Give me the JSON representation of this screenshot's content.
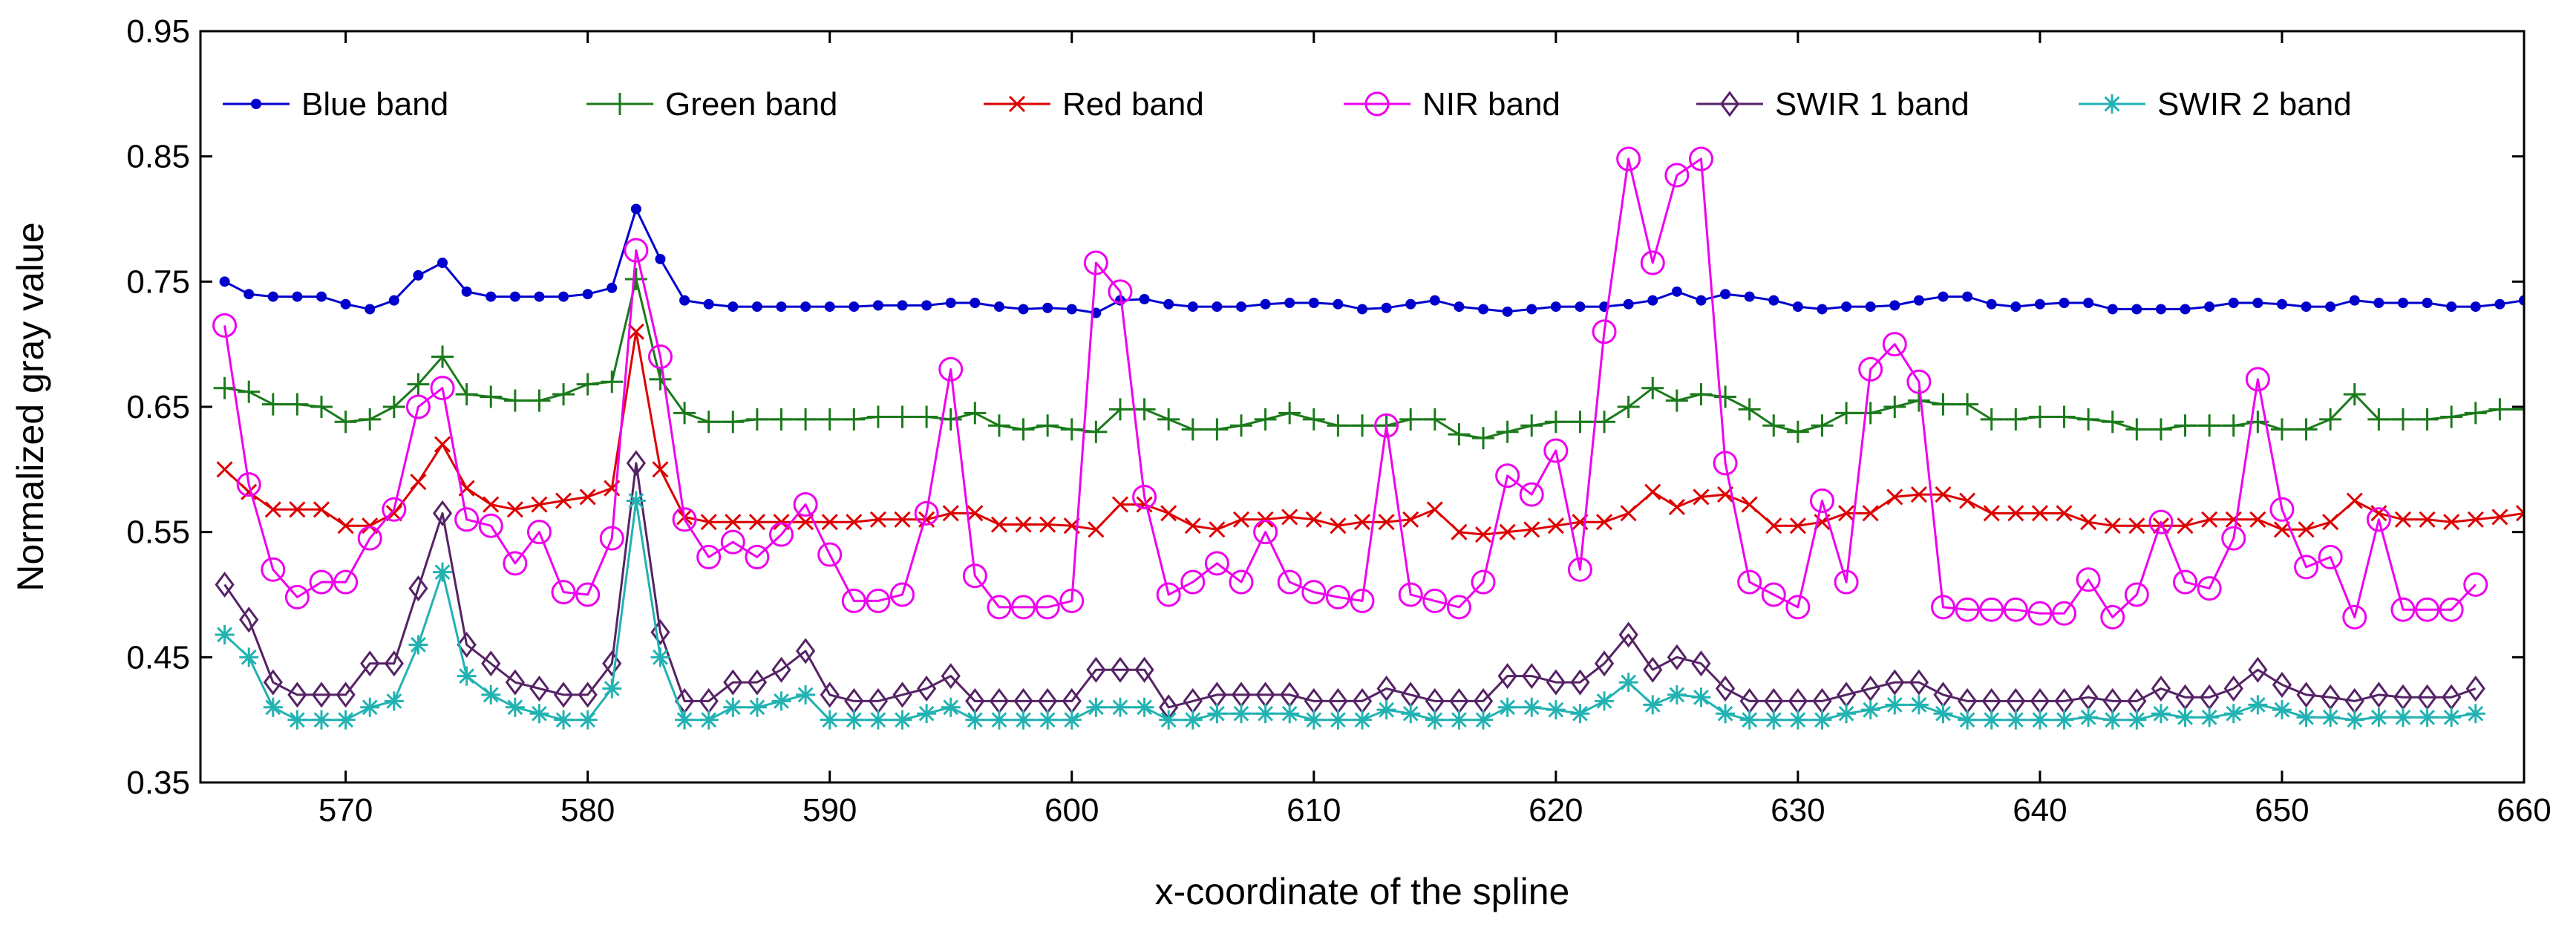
{
  "chart_data": {
    "type": "line",
    "title": "",
    "xlabel": "x-coordinate of the spline",
    "ylabel": "Normalized gray value",
    "xlim": [
      564,
      660
    ],
    "ylim": [
      0.35,
      0.95
    ],
    "x_ticks": [
      570,
      580,
      590,
      600,
      610,
      620,
      630,
      640,
      650,
      660
    ],
    "y_ticks": [
      0.35,
      0.45,
      0.55,
      0.65,
      0.75,
      0.85,
      0.95
    ],
    "x_tick_labels": [
      "570",
      "580",
      "590",
      "600",
      "610",
      "620",
      "630",
      "640",
      "650",
      "660"
    ],
    "y_tick_labels": [
      "0.35",
      "0.45",
      "0.55",
      "0.65",
      "0.75",
      "0.85",
      "0.95"
    ],
    "grid": false,
    "legend_position": "top",
    "x_start": 565,
    "x_step": 1,
    "series": [
      {
        "name": "Blue band",
        "color": "#0000cc",
        "marker": "dot",
        "values": [
          0.75,
          0.74,
          0.738,
          0.738,
          0.738,
          0.732,
          0.728,
          0.735,
          0.755,
          0.765,
          0.742,
          0.738,
          0.738,
          0.738,
          0.738,
          0.74,
          0.745,
          0.808,
          0.768,
          0.735,
          0.732,
          0.73,
          0.73,
          0.73,
          0.73,
          0.73,
          0.73,
          0.731,
          0.731,
          0.731,
          0.733,
          0.733,
          0.73,
          0.728,
          0.729,
          0.728,
          0.725,
          0.735,
          0.736,
          0.732,
          0.73,
          0.73,
          0.73,
          0.732,
          0.733,
          0.733,
          0.732,
          0.728,
          0.729,
          0.732,
          0.735,
          0.73,
          0.728,
          0.726,
          0.728,
          0.73,
          0.73,
          0.73,
          0.732,
          0.735,
          0.742,
          0.735,
          0.74,
          0.738,
          0.735,
          0.73,
          0.728,
          0.73,
          0.73,
          0.731,
          0.735,
          0.738,
          0.738,
          0.732,
          0.73,
          0.732,
          0.733,
          0.733,
          0.728,
          0.728,
          0.728,
          0.728,
          0.73,
          0.733,
          0.733,
          0.732,
          0.73,
          0.73,
          0.735,
          0.733,
          0.733,
          0.733,
          0.73,
          0.73,
          0.732,
          0.735
        ]
      },
      {
        "name": "Green band",
        "color": "#1a7a1a",
        "marker": "plus",
        "values": [
          0.665,
          0.662,
          0.652,
          0.652,
          0.65,
          0.638,
          0.64,
          0.65,
          0.668,
          0.69,
          0.66,
          0.658,
          0.655,
          0.655,
          0.66,
          0.668,
          0.67,
          0.752,
          0.672,
          0.645,
          0.638,
          0.638,
          0.64,
          0.64,
          0.64,
          0.64,
          0.64,
          0.642,
          0.642,
          0.642,
          0.64,
          0.645,
          0.635,
          0.632,
          0.635,
          0.632,
          0.63,
          0.648,
          0.648,
          0.64,
          0.632,
          0.632,
          0.635,
          0.64,
          0.645,
          0.64,
          0.635,
          0.635,
          0.635,
          0.64,
          0.64,
          0.628,
          0.625,
          0.63,
          0.635,
          0.638,
          0.638,
          0.638,
          0.65,
          0.665,
          0.655,
          0.66,
          0.658,
          0.648,
          0.635,
          0.63,
          0.635,
          0.645,
          0.645,
          0.65,
          0.655,
          0.652,
          0.652,
          0.64,
          0.64,
          0.642,
          0.642,
          0.64,
          0.638,
          0.632,
          0.632,
          0.635,
          0.635,
          0.635,
          0.638,
          0.632,
          0.632,
          0.64,
          0.66,
          0.64,
          0.64,
          0.64,
          0.642,
          0.645,
          0.648,
          0.648
        ]
      },
      {
        "name": "Red band",
        "color": "#dd0000",
        "marker": "x",
        "values": [
          0.6,
          0.582,
          0.568,
          0.568,
          0.568,
          0.555,
          0.555,
          0.565,
          0.59,
          0.62,
          0.585,
          0.572,
          0.568,
          0.572,
          0.575,
          0.578,
          0.585,
          0.71,
          0.6,
          0.562,
          0.558,
          0.558,
          0.558,
          0.558,
          0.558,
          0.558,
          0.558,
          0.56,
          0.56,
          0.56,
          0.565,
          0.565,
          0.556,
          0.556,
          0.556,
          0.555,
          0.552,
          0.572,
          0.572,
          0.565,
          0.555,
          0.552,
          0.56,
          0.56,
          0.562,
          0.56,
          0.555,
          0.558,
          0.558,
          0.56,
          0.568,
          0.55,
          0.548,
          0.55,
          0.552,
          0.555,
          0.558,
          0.558,
          0.565,
          0.582,
          0.57,
          0.578,
          0.58,
          0.572,
          0.555,
          0.555,
          0.558,
          0.565,
          0.565,
          0.578,
          0.58,
          0.58,
          0.575,
          0.565,
          0.565,
          0.565,
          0.565,
          0.558,
          0.555,
          0.555,
          0.555,
          0.555,
          0.56,
          0.56,
          0.56,
          0.552,
          0.552,
          0.558,
          0.575,
          0.565,
          0.56,
          0.56,
          0.558,
          0.56,
          0.562,
          0.565
        ]
      },
      {
        "name": "NIR band",
        "color": "#ee00ee",
        "marker": "circle",
        "values": [
          0.715,
          0.588,
          0.52,
          0.498,
          0.51,
          0.51,
          0.545,
          0.568,
          0.65,
          0.665,
          0.56,
          0.555,
          0.525,
          0.55,
          0.502,
          0.5,
          0.545,
          0.775,
          0.69,
          0.56,
          0.53,
          0.542,
          0.53,
          0.548,
          0.572,
          0.532,
          0.495,
          0.495,
          0.5,
          0.565,
          0.68,
          0.515,
          0.49,
          0.49,
          0.49,
          0.495,
          0.765,
          0.742,
          0.578,
          0.5,
          0.51,
          0.525,
          0.51,
          0.55,
          0.51,
          0.502,
          0.498,
          0.495,
          0.635,
          0.5,
          0.495,
          0.49,
          0.51,
          0.595,
          0.58,
          0.615,
          0.52,
          0.71,
          0.848,
          0.765,
          0.835,
          0.848,
          0.605,
          0.51,
          0.5,
          0.49,
          0.575,
          0.51,
          0.68,
          0.7,
          0.67,
          0.49,
          0.488,
          0.488,
          0.488,
          0.485,
          0.485,
          0.512,
          0.482,
          0.5,
          0.558,
          0.51,
          0.505,
          0.545,
          0.672,
          0.568,
          0.522,
          0.53,
          0.482,
          0.56,
          0.488,
          0.488,
          0.488,
          0.508
        ]
      },
      {
        "name": "SWIR 1 band",
        "color": "#552266",
        "marker": "diamond",
        "values": [
          0.508,
          0.48,
          0.43,
          0.42,
          0.42,
          0.42,
          0.445,
          0.445,
          0.505,
          0.565,
          0.46,
          0.445,
          0.43,
          0.425,
          0.42,
          0.42,
          0.445,
          0.605,
          0.47,
          0.415,
          0.415,
          0.43,
          0.43,
          0.44,
          0.455,
          0.42,
          0.415,
          0.415,
          0.42,
          0.425,
          0.435,
          0.415,
          0.415,
          0.415,
          0.415,
          0.415,
          0.44,
          0.44,
          0.44,
          0.41,
          0.415,
          0.42,
          0.42,
          0.42,
          0.42,
          0.415,
          0.415,
          0.415,
          0.425,
          0.42,
          0.415,
          0.415,
          0.415,
          0.435,
          0.435,
          0.43,
          0.43,
          0.445,
          0.468,
          0.44,
          0.45,
          0.445,
          0.425,
          0.415,
          0.415,
          0.415,
          0.415,
          0.42,
          0.425,
          0.43,
          0.43,
          0.42,
          0.415,
          0.415,
          0.415,
          0.415,
          0.415,
          0.418,
          0.415,
          0.415,
          0.425,
          0.418,
          0.418,
          0.425,
          0.44,
          0.428,
          0.42,
          0.418,
          0.415,
          0.42,
          0.418,
          0.418,
          0.418,
          0.425
        ]
      },
      {
        "name": "SWIR 2 band",
        "color": "#22b2b2",
        "marker": "asterisk",
        "values": [
          0.468,
          0.45,
          0.41,
          0.4,
          0.4,
          0.4,
          0.41,
          0.415,
          0.46,
          0.518,
          0.435,
          0.42,
          0.41,
          0.405,
          0.4,
          0.4,
          0.425,
          0.575,
          0.45,
          0.4,
          0.4,
          0.41,
          0.41,
          0.415,
          0.42,
          0.4,
          0.4,
          0.4,
          0.4,
          0.405,
          0.41,
          0.4,
          0.4,
          0.4,
          0.4,
          0.4,
          0.41,
          0.41,
          0.41,
          0.4,
          0.4,
          0.405,
          0.405,
          0.405,
          0.405,
          0.4,
          0.4,
          0.4,
          0.408,
          0.405,
          0.4,
          0.4,
          0.4,
          0.41,
          0.41,
          0.408,
          0.405,
          0.415,
          0.43,
          0.412,
          0.42,
          0.418,
          0.405,
          0.4,
          0.4,
          0.4,
          0.4,
          0.405,
          0.408,
          0.412,
          0.412,
          0.405,
          0.4,
          0.4,
          0.4,
          0.4,
          0.4,
          0.402,
          0.4,
          0.4,
          0.405,
          0.402,
          0.402,
          0.405,
          0.412,
          0.408,
          0.402,
          0.402,
          0.4,
          0.402,
          0.402,
          0.402,
          0.402,
          0.405
        ]
      }
    ]
  }
}
